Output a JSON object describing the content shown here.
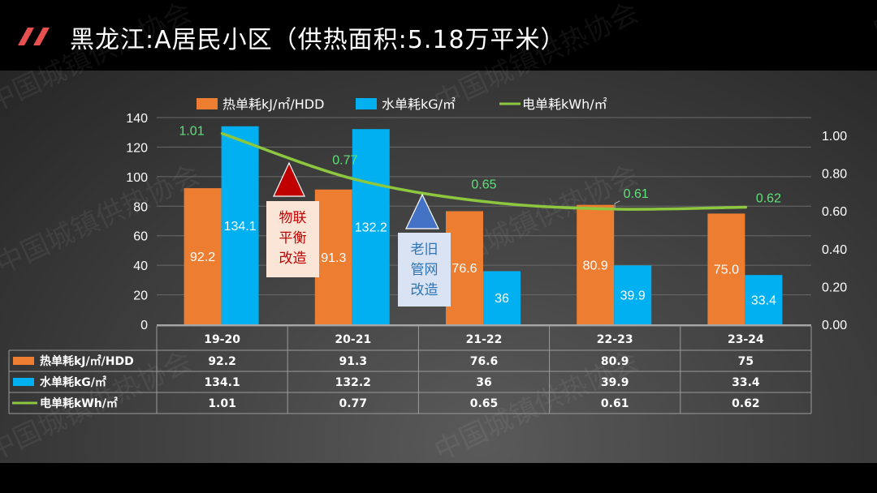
{
  "header": {
    "title": "黑龙江:A居民小区（供热面积:5.18万平米）",
    "icon": "double-slash-icon",
    "icon_color": "#e8504f"
  },
  "watermark": "中国城镇供热协会",
  "colors": {
    "heat": "#ed7d31",
    "water": "#00b0f0",
    "electric": "#8dc63f",
    "electric_label": "#5fe07a",
    "callout_red_box": "#fbe5d6",
    "callout_red_text": "#c00000",
    "callout_red_triangle": "#c00000",
    "callout_blue_box": "#dae3f3",
    "callout_blue_text": "#2e75b6",
    "callout_blue_triangle": "#4472c4"
  },
  "callouts": [
    {
      "lines": [
        "物联",
        "平衡",
        "改造"
      ],
      "theme": "red"
    },
    {
      "lines": [
        "老旧",
        "管网",
        "改造"
      ],
      "theme": "blue"
    }
  ],
  "chart_data": {
    "type": "bar",
    "categories": [
      "19-20",
      "20-21",
      "21-22",
      "22-23",
      "23-24"
    ],
    "series": [
      {
        "name": "热单耗kJ/㎡/HDD",
        "kind": "bar",
        "axis": "left",
        "values": [
          92.2,
          91.3,
          76.6,
          80.9,
          75.0
        ],
        "bar_labels": [
          "92.2",
          "91.3",
          "76.6",
          "80.9",
          "75.0"
        ],
        "table_values": [
          "92.2",
          "91.3",
          "76.6",
          "80.9",
          "75"
        ]
      },
      {
        "name": "水单耗kG/㎡",
        "kind": "bar",
        "axis": "left",
        "values": [
          134.1,
          132.2,
          36,
          39.9,
          33.4
        ],
        "bar_labels": [
          "134.1",
          "132.2",
          "36",
          "39.9",
          "33.4"
        ],
        "table_values": [
          "134.1",
          "132.2",
          "36",
          "39.9",
          "33.4"
        ]
      },
      {
        "name": "电单耗kWh/㎡",
        "kind": "line",
        "axis": "right",
        "values": [
          1.01,
          0.77,
          0.65,
          0.61,
          0.62
        ],
        "bar_labels": [
          "1.01",
          "0.77",
          "0.65",
          "0.61",
          "0.62"
        ],
        "table_values": [
          "1.01",
          "0.77",
          "0.65",
          "0.61",
          "0.62"
        ]
      }
    ],
    "y_left": {
      "ylim": [
        0,
        140
      ],
      "ticks": [
        "0",
        "20",
        "40",
        "60",
        "80",
        "100",
        "120",
        "140"
      ]
    },
    "y_right": {
      "ylim": [
        0,
        1.1
      ],
      "ticks": [
        "0.00",
        "0.20",
        "0.40",
        "0.60",
        "0.80",
        "1.00"
      ]
    },
    "legend": "top",
    "grid": true,
    "data_table": true
  }
}
